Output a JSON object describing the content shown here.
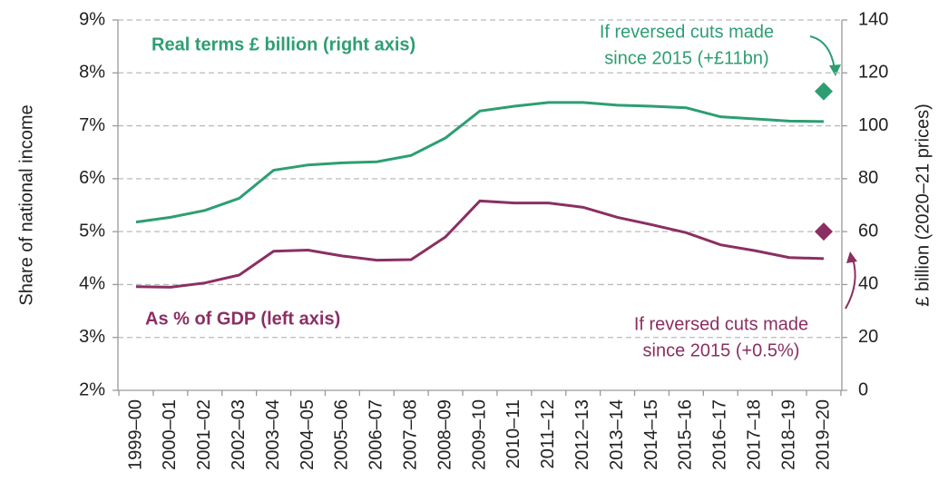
{
  "chart_data": {
    "type": "line",
    "categories": [
      "1999–00",
      "2000–01",
      "2001–02",
      "2002–03",
      "2003–04",
      "2004–05",
      "2005–06",
      "2006–07",
      "2007–08",
      "2008–09",
      "2009–10",
      "2010–11",
      "2011–12",
      "2012–13",
      "2013–14",
      "2014–15",
      "2015–16",
      "2016–17",
      "2017–18",
      "2018–19",
      "2019–20"
    ],
    "y_label": "Share of national income",
    "y2_label": "£ billion (2020–21 prices)",
    "ylim": [
      2,
      9
    ],
    "yticks": [
      {
        "value": 2,
        "label": "2%"
      },
      {
        "value": 3,
        "label": "3%"
      },
      {
        "value": 4,
        "label": "4%"
      },
      {
        "value": 5,
        "label": "5%"
      },
      {
        "value": 6,
        "label": "6%"
      },
      {
        "value": 7,
        "label": "7%"
      },
      {
        "value": 8,
        "label": "8%"
      },
      {
        "value": 9,
        "label": "9%"
      }
    ],
    "y2lim": [
      0,
      140
    ],
    "y2ticks": [
      0,
      20,
      40,
      60,
      80,
      100,
      120,
      140
    ],
    "grid": true,
    "series": [
      {
        "name": "Real terms £ billion (right axis)",
        "color": "#2e9e72",
        "axis": "y2",
        "marker": "line",
        "values": [
          63.6,
          65.4,
          68,
          72.6,
          83.2,
          85.2,
          86,
          86.4,
          88.8,
          95.4,
          105.6,
          107.4,
          108.8,
          108.8,
          107.8,
          107.4,
          106.8,
          103.4,
          102.6,
          101.8,
          101.6
        ]
      },
      {
        "name": "As % of GDP (left axis)",
        "color": "#8b2f62",
        "axis": "y",
        "marker": "line",
        "values": [
          3.96,
          3.95,
          4.03,
          4.18,
          4.63,
          4.65,
          4.54,
          4.46,
          4.47,
          4.9,
          5.58,
          5.54,
          5.54,
          5.46,
          5.27,
          5.13,
          4.98,
          4.75,
          4.64,
          4.51,
          4.49
        ]
      },
      {
        "color": "#2e9e72",
        "axis": "y2",
        "marker": "diamond",
        "values": [
          null,
          null,
          null,
          null,
          null,
          null,
          null,
          null,
          null,
          null,
          null,
          null,
          null,
          null,
          null,
          null,
          null,
          null,
          null,
          null,
          113
        ]
      },
      {
        "color": "#8b2f62",
        "axis": "y",
        "marker": "diamond",
        "values": [
          null,
          null,
          null,
          null,
          null,
          null,
          null,
          null,
          null,
          null,
          null,
          null,
          null,
          null,
          null,
          null,
          null,
          null,
          null,
          null,
          5.0
        ]
      }
    ],
    "annotations": [
      {
        "lines": [
          "If reversed cuts made",
          "since 2015 (+£11bn)"
        ],
        "color": "#2e9e72"
      },
      {
        "lines": [
          "If reversed cuts made",
          "since 2015 (+0.5%)"
        ],
        "color": "#8b2f62"
      }
    ]
  }
}
